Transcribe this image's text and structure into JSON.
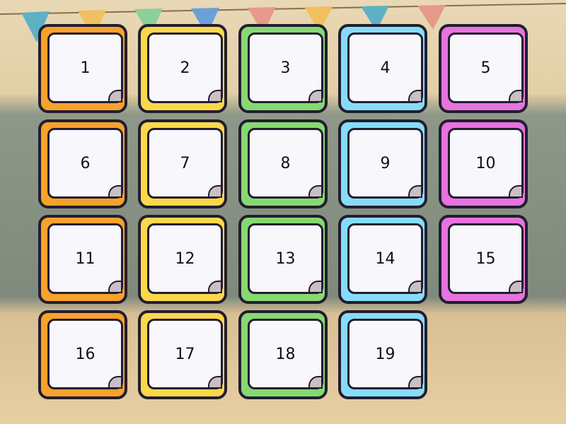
{
  "cards": [
    {
      "label": "1",
      "color": "#f7a22b"
    },
    {
      "label": "2",
      "color": "#fbd84a"
    },
    {
      "label": "3",
      "color": "#86d970"
    },
    {
      "label": "4",
      "color": "#86dcf6"
    },
    {
      "label": "5",
      "color": "#e673de"
    },
    {
      "label": "6",
      "color": "#f7a22b"
    },
    {
      "label": "7",
      "color": "#fbd84a"
    },
    {
      "label": "8",
      "color": "#86d970"
    },
    {
      "label": "9",
      "color": "#86dcf6"
    },
    {
      "label": "10",
      "color": "#e673de"
    },
    {
      "label": "11",
      "color": "#f7a22b"
    },
    {
      "label": "12",
      "color": "#fbd84a"
    },
    {
      "label": "13",
      "color": "#86d970"
    },
    {
      "label": "14",
      "color": "#86dcf6"
    },
    {
      "label": "15",
      "color": "#e673de"
    },
    {
      "label": "16",
      "color": "#f7a22b"
    },
    {
      "label": "17",
      "color": "#fbd84a"
    },
    {
      "label": "18",
      "color": "#86d970"
    },
    {
      "label": "19",
      "color": "#86dcf6"
    }
  ]
}
